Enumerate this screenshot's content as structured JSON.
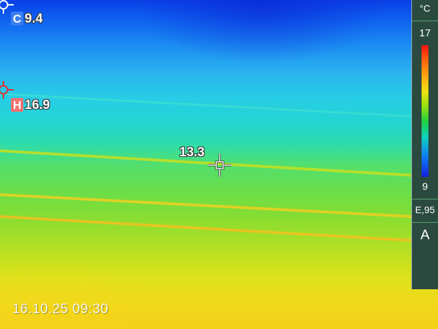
{
  "readings": {
    "cold": {
      "tag": "C",
      "value": "9.4"
    },
    "hot": {
      "tag": "H",
      "value": "16.9"
    },
    "center": {
      "value": "13.3"
    }
  },
  "timestamp": "16.10.25 09:30",
  "panel": {
    "unit": "°C",
    "scale_max": "17",
    "scale_min": "9",
    "emissivity": "E,95",
    "mode": "A"
  },
  "colors": {
    "cold_tag": "#3a7ff0",
    "hot_tag": "#f07070",
    "panel_bg": "#2a4a3f"
  },
  "icons": {
    "cold_marker": "crosshair-icon",
    "hot_marker": "crosshair-icon",
    "center_marker": "crosshair-icon"
  }
}
